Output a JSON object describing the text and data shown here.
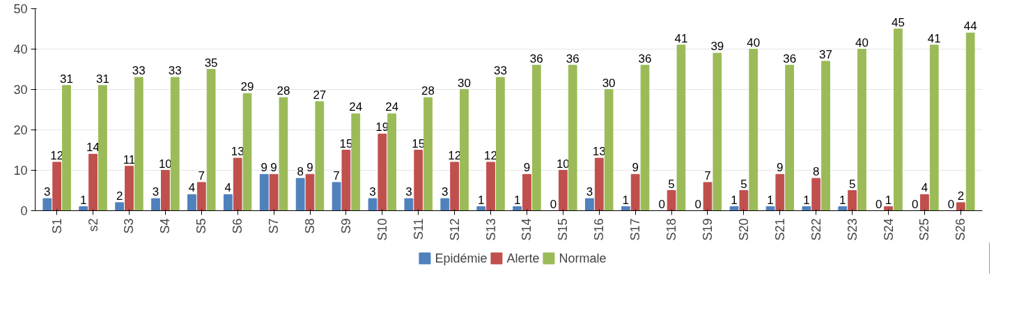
{
  "chart_data": {
    "type": "bar",
    "categories": [
      "S1",
      "s2",
      "S3",
      "S4",
      "S5",
      "S6",
      "S7",
      "S8",
      "S9",
      "S10",
      "S11",
      "S12",
      "S13",
      "S14",
      "S15",
      "S16",
      "S17",
      "S18",
      "S19",
      "S20",
      "S21",
      "S22",
      "S23",
      "S24",
      "S25",
      "S26"
    ],
    "series": [
      {
        "name": "Epidémie",
        "color": "#4f81bd",
        "values": [
          3,
          1,
          2,
          3,
          4,
          4,
          9,
          8,
          7,
          3,
          3,
          3,
          1,
          1,
          0,
          3,
          1,
          0,
          0,
          1,
          1,
          1,
          1,
          0,
          0,
          0
        ]
      },
      {
        "name": "Alerte",
        "color": "#c0504d",
        "values": [
          12,
          14,
          11,
          10,
          7,
          13,
          9,
          9,
          15,
          19,
          15,
          12,
          12,
          9,
          10,
          13,
          9,
          5,
          7,
          5,
          9,
          8,
          5,
          1,
          4,
          2
        ]
      },
      {
        "name": "Normale",
        "color": "#9bbb59",
        "values": [
          31,
          31,
          33,
          33,
          35,
          29,
          28,
          27,
          24,
          24,
          28,
          30,
          33,
          36,
          36,
          30,
          36,
          41,
          39,
          40,
          36,
          37,
          40,
          45,
          41,
          44
        ]
      }
    ],
    "ylim": [
      0,
      50
    ],
    "yticks": [
      0,
      10,
      20,
      30,
      40,
      50
    ],
    "grid": "y",
    "legend": "bottom",
    "data_labels": true
  }
}
